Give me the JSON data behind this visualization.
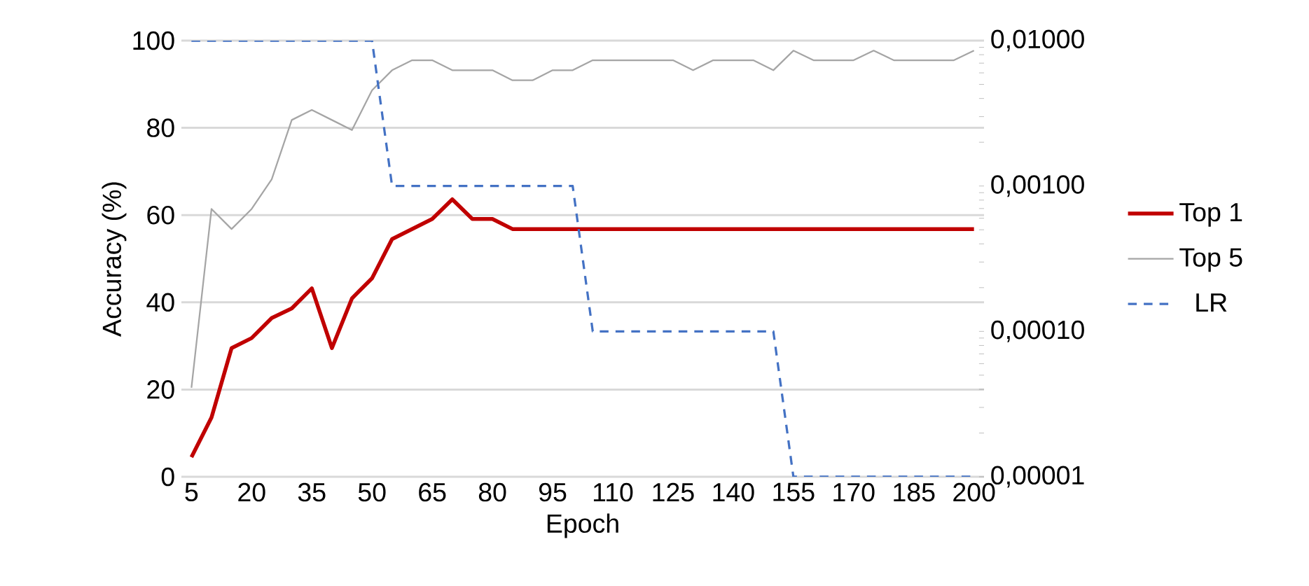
{
  "chart_data": {
    "type": "line",
    "xlabel": "Epoch",
    "ylabel": "Accuracy (%)",
    "categories": [
      "5",
      null,
      null,
      "20",
      null,
      null,
      "35",
      null,
      null,
      "50",
      null,
      null,
      "65",
      null,
      null,
      "80",
      null,
      null,
      "95",
      null,
      null,
      "110",
      null,
      null,
      "125",
      null,
      null,
      "140",
      null,
      null,
      "155",
      null,
      null,
      "170",
      null,
      null,
      "185",
      null,
      null,
      "200"
    ],
    "series": [
      {
        "name": "Top 1",
        "color": "#c00000",
        "line_style": "solid",
        "values": [
          4.5,
          13.6,
          29.5,
          31.8,
          36.4,
          38.6,
          43.2,
          29.5,
          40.9,
          45.5,
          54.5,
          56.8,
          59.1,
          63.6,
          59.1,
          59.1,
          56.8,
          56.8,
          56.8,
          56.8,
          56.8,
          56.8,
          56.8,
          56.8,
          56.8,
          56.8,
          56.8,
          56.8,
          56.8,
          56.8,
          56.8,
          56.8,
          56.8,
          56.8,
          56.8,
          56.8,
          56.8,
          56.8,
          56.8,
          56.8
        ]
      },
      {
        "name": "Top 5",
        "color": "#a5a5a5",
        "line_style": "solid",
        "values": [
          20.4,
          61.4,
          56.8,
          61.4,
          68.2,
          81.8,
          84.1,
          81.8,
          79.5,
          88.6,
          93.2,
          95.5,
          95.5,
          93.2,
          93.2,
          93.2,
          90.9,
          90.9,
          93.2,
          93.2,
          95.5,
          95.5,
          95.5,
          95.5,
          95.5,
          93.2,
          95.5,
          95.5,
          95.5,
          93.2,
          97.7,
          95.5,
          95.5,
          95.5,
          97.7,
          95.5,
          95.5,
          95.5,
          95.5,
          97.7
        ]
      },
      {
        "name": "LR",
        "color": "#4472c4",
        "line_style": "dashed",
        "axis": "y2",
        "values": [
          0.01,
          0.01,
          0.01,
          0.01,
          0.01,
          0.01,
          0.01,
          0.01,
          0.01,
          0.01,
          0.001,
          0.001,
          0.001,
          0.001,
          0.001,
          0.001,
          0.001,
          0.001,
          0.001,
          0.001,
          0.0001,
          0.0001,
          0.0001,
          0.0001,
          0.0001,
          0.0001,
          0.0001,
          0.0001,
          0.0001,
          0.0001,
          1e-05,
          1e-05,
          1e-05,
          1e-05,
          1e-05,
          1e-05,
          1e-05,
          1e-05,
          1e-05,
          1e-05
        ]
      }
    ],
    "ylim": [
      0,
      100
    ],
    "yticks": [
      0,
      20,
      40,
      60,
      80,
      100
    ],
    "y2lim": [
      1e-05,
      0.01
    ],
    "y2ticks": [
      {
        "value": 1e-05,
        "label": "0,00001"
      },
      {
        "value": 0.0001,
        "label": "0,00010"
      },
      {
        "value": 0.001,
        "label": "0,00100"
      },
      {
        "value": 0.01,
        "label": "0,01000"
      }
    ],
    "log": "y2",
    "grid": "y",
    "legend": "right"
  }
}
